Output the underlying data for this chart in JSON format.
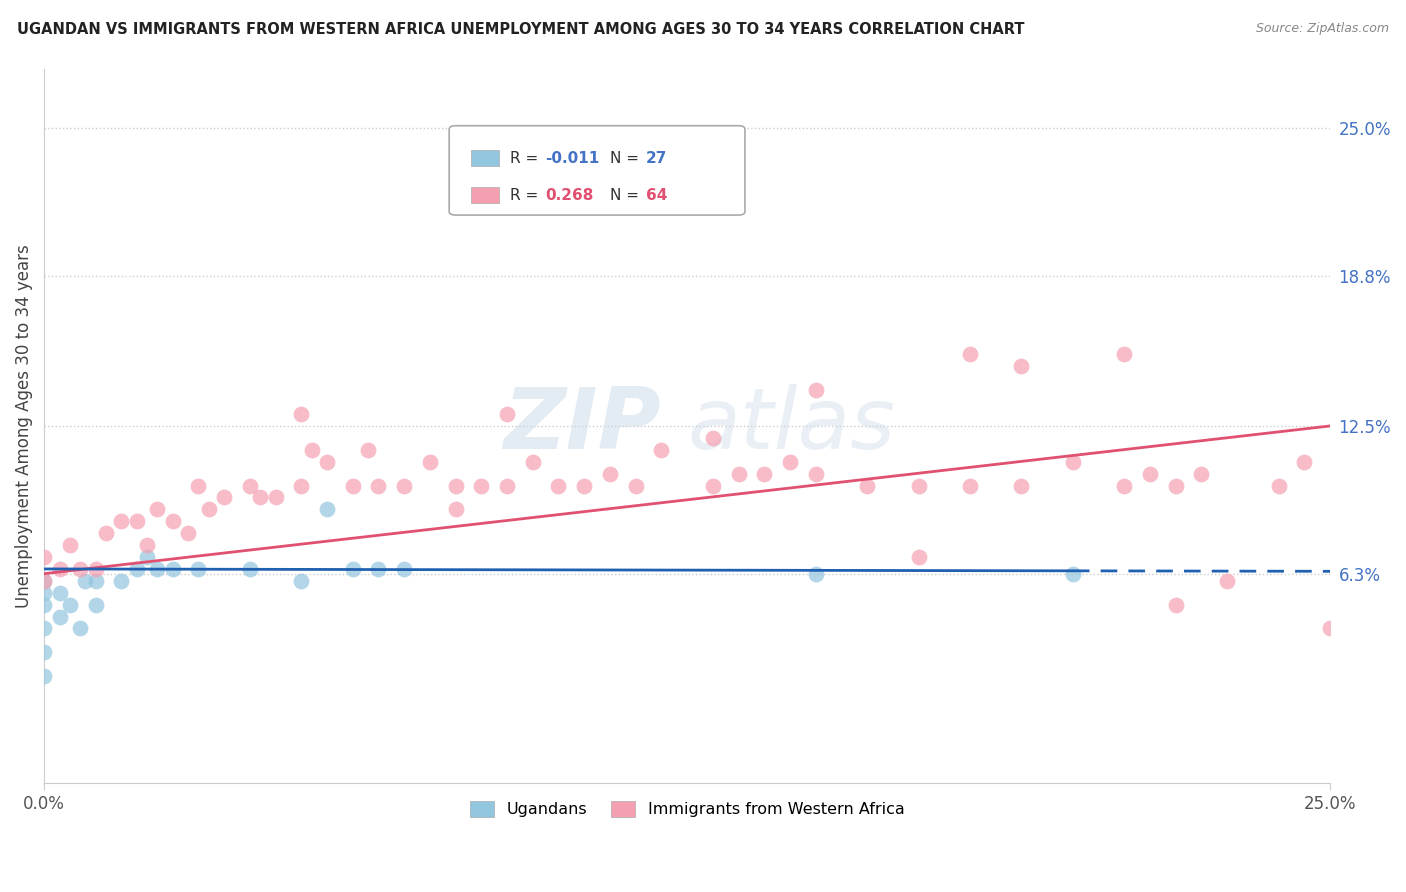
{
  "title": "UGANDAN VS IMMIGRANTS FROM WESTERN AFRICA UNEMPLOYMENT AMONG AGES 30 TO 34 YEARS CORRELATION CHART",
  "source": "Source: ZipAtlas.com",
  "ylabel": "Unemployment Among Ages 30 to 34 years",
  "ytick_labels": [
    "6.3%",
    "12.5%",
    "18.8%",
    "25.0%"
  ],
  "ytick_values": [
    0.063,
    0.125,
    0.188,
    0.25
  ],
  "xlim": [
    0.0,
    0.25
  ],
  "ylim": [
    -0.025,
    0.275
  ],
  "color_blue": "#92C5DE",
  "color_pink": "#F4A0B0",
  "color_blue_line": "#2060B0",
  "color_pink_line": "#E05070",
  "watermark_zip": "ZIP",
  "watermark_atlas": "atlas",
  "legend_r1_label": "R = ",
  "legend_r1_val": "-0.011",
  "legend_n1_label": "N = ",
  "legend_n1_val": "27",
  "legend_r2_label": "R = ",
  "legend_r2_val": "0.268",
  "legend_n2_label": "N = ",
  "legend_n2_val": "64",
  "ugandan_x": [
    0.0,
    0.0,
    0.0,
    0.0,
    0.0,
    0.0,
    0.003,
    0.003,
    0.005,
    0.007,
    0.008,
    0.01,
    0.01,
    0.015,
    0.018,
    0.02,
    0.022,
    0.025,
    0.03,
    0.04,
    0.05,
    0.055,
    0.06,
    0.065,
    0.07,
    0.15,
    0.2
  ],
  "ugandan_y": [
    0.02,
    0.03,
    0.04,
    0.05,
    0.055,
    0.06,
    0.045,
    0.055,
    0.05,
    0.04,
    0.06,
    0.05,
    0.06,
    0.06,
    0.065,
    0.07,
    0.065,
    0.065,
    0.065,
    0.065,
    0.06,
    0.09,
    0.065,
    0.065,
    0.065,
    0.063,
    0.063
  ],
  "western_x": [
    0.0,
    0.0,
    0.003,
    0.005,
    0.007,
    0.01,
    0.012,
    0.015,
    0.018,
    0.02,
    0.022,
    0.025,
    0.028,
    0.03,
    0.032,
    0.035,
    0.04,
    0.042,
    0.045,
    0.05,
    0.052,
    0.055,
    0.06,
    0.063,
    0.065,
    0.07,
    0.075,
    0.08,
    0.085,
    0.09,
    0.095,
    0.1,
    0.105,
    0.11,
    0.115,
    0.12,
    0.13,
    0.135,
    0.14,
    0.145,
    0.15,
    0.16,
    0.17,
    0.18,
    0.19,
    0.2,
    0.21,
    0.215,
    0.22,
    0.225,
    0.23,
    0.24,
    0.245,
    0.25,
    0.21,
    0.15,
    0.18,
    0.09,
    0.22,
    0.17,
    0.05,
    0.13,
    0.08,
    0.19
  ],
  "western_y": [
    0.06,
    0.07,
    0.065,
    0.075,
    0.065,
    0.065,
    0.08,
    0.085,
    0.085,
    0.075,
    0.09,
    0.085,
    0.08,
    0.1,
    0.09,
    0.095,
    0.1,
    0.095,
    0.095,
    0.1,
    0.115,
    0.11,
    0.1,
    0.115,
    0.1,
    0.1,
    0.11,
    0.1,
    0.1,
    0.1,
    0.11,
    0.1,
    0.1,
    0.105,
    0.1,
    0.115,
    0.1,
    0.105,
    0.105,
    0.11,
    0.105,
    0.1,
    0.1,
    0.1,
    0.1,
    0.11,
    0.1,
    0.105,
    0.1,
    0.105,
    0.06,
    0.1,
    0.11,
    0.04,
    0.155,
    0.14,
    0.155,
    0.13,
    0.05,
    0.07,
    0.13,
    0.12,
    0.09,
    0.15
  ],
  "blue_line_solid_end": 0.2,
  "blue_line_y_start": 0.065,
  "blue_line_y_end": 0.064,
  "pink_line_y_start": 0.063,
  "pink_line_y_end": 0.125
}
